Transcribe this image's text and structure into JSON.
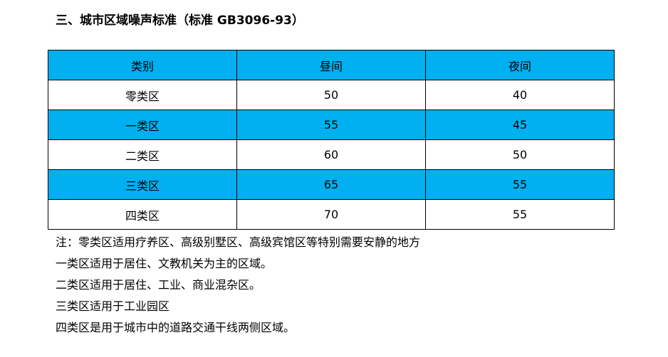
{
  "title": "三、城市区域噪声标准（标准 GB3096-93）",
  "table": {
    "headers": [
      "类别",
      "昼间",
      "夜间"
    ],
    "rows": [
      [
        "零类区",
        "50",
        "40"
      ],
      [
        "一类区",
        "55",
        "45"
      ],
      [
        "二类区",
        "60",
        "50"
      ],
      [
        "三类区",
        "65",
        "55"
      ],
      [
        "四类区",
        "70",
        "55"
      ]
    ],
    "highlight_color": "#00b0f0"
  },
  "notes": [
    "注：零类区适用疗养区、高级别墅区、高级宾馆区等特别需要安静的地方",
    "一类区适用于居住、文教机关为主的区域。",
    "二类区适用于居住、工业、商业混杂区。",
    "三类区适用于工业园区",
    "四类区是用于城市中的道路交通干线两侧区域。"
  ]
}
